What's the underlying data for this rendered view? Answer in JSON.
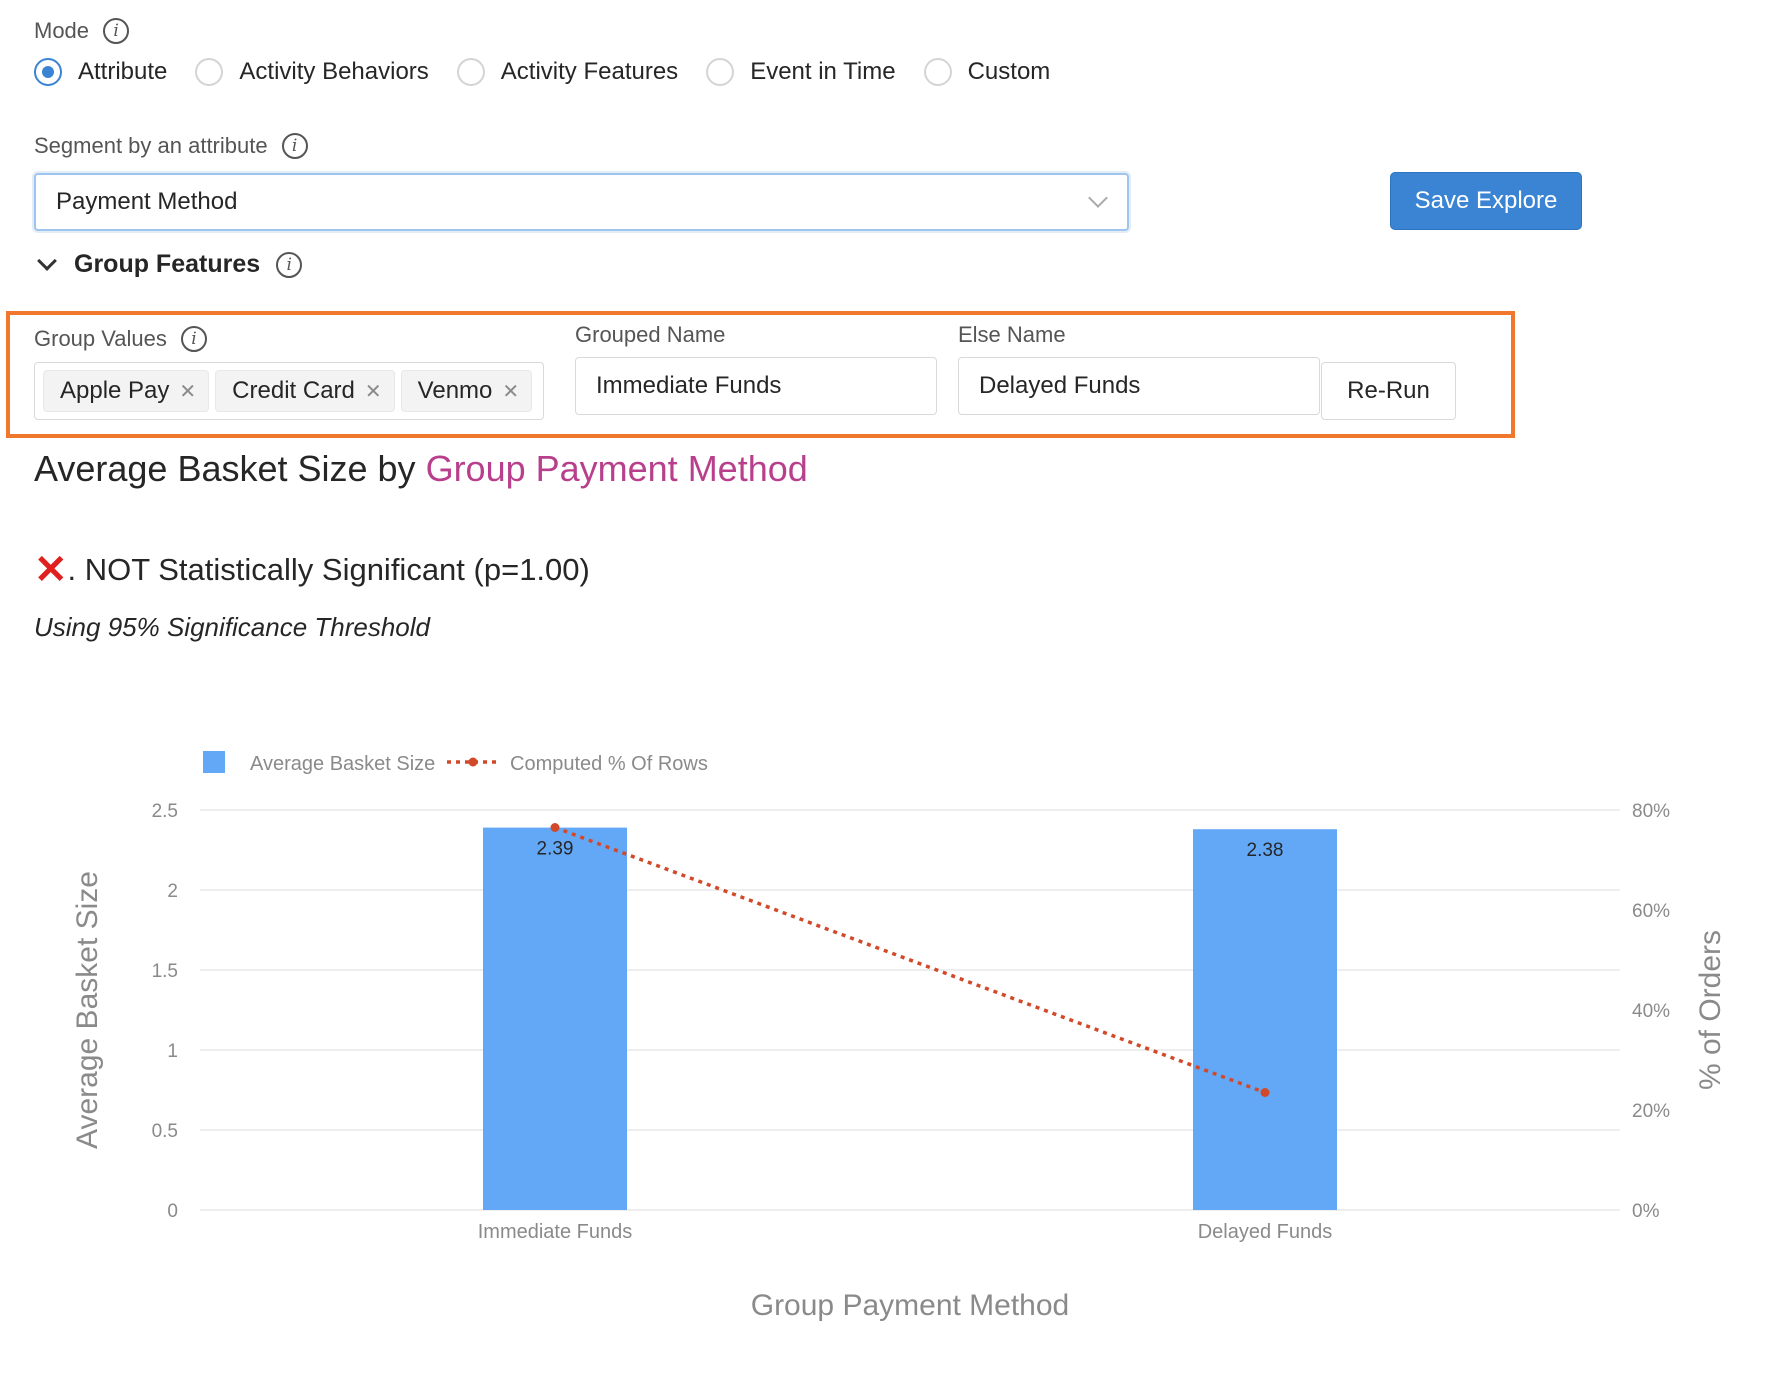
{
  "mode": {
    "label": "Mode",
    "options": [
      {
        "label": "Attribute",
        "checked": true
      },
      {
        "label": "Activity Behaviors",
        "checked": false
      },
      {
        "label": "Activity Features",
        "checked": false
      },
      {
        "label": "Event in Time",
        "checked": false
      },
      {
        "label": "Custom",
        "checked": false
      }
    ]
  },
  "segment": {
    "label": "Segment by an attribute",
    "value": "Payment Method"
  },
  "save_label": "Save Explore",
  "group_features": {
    "title": "Group Features",
    "group_values_label": "Group Values",
    "tags": [
      "Apple Pay",
      "Credit Card",
      "Venmo"
    ],
    "grouped_name_label": "Grouped Name",
    "grouped_name_value": "Immediate Funds",
    "else_name_label": "Else Name",
    "else_name_value": "Delayed Funds",
    "rerun_label": "Re-Run"
  },
  "result": {
    "title_prefix": "Average Basket Size by ",
    "title_accent": "Group Payment Method",
    "significance": ". NOT Statistically Significant (p=1.00)",
    "threshold": "Using 95% Significance Threshold"
  },
  "colors": {
    "accent": "#b83f8b",
    "primary": "#3a84d3",
    "bar": "#63a8f7",
    "line": "#d2492a",
    "highlight": "#f0782d"
  },
  "chart_data": {
    "type": "bar",
    "categories": [
      "Immediate Funds",
      "Delayed Funds"
    ],
    "series": [
      {
        "name": "Average Basket Size",
        "type": "bar",
        "axis": "left",
        "values": [
          2.39,
          2.38
        ],
        "labels": [
          "2.39",
          "2.38"
        ]
      },
      {
        "name": "Computed % Of Rows",
        "type": "line",
        "axis": "right",
        "values": [
          76.5,
          23.5
        ]
      }
    ],
    "xlabel": "Group Payment Method",
    "ylabel": "Average Basket Size",
    "y2label": "% of Orders",
    "ylim": [
      0,
      2.5
    ],
    "y2lim": [
      0,
      80
    ],
    "yticks": [
      "0",
      "0.5",
      "1",
      "1.5",
      "2",
      "2.5"
    ],
    "y2ticks": [
      "0%",
      "20%",
      "40%",
      "60%",
      "80%"
    ],
    "legend": "top-left",
    "grid": true
  }
}
